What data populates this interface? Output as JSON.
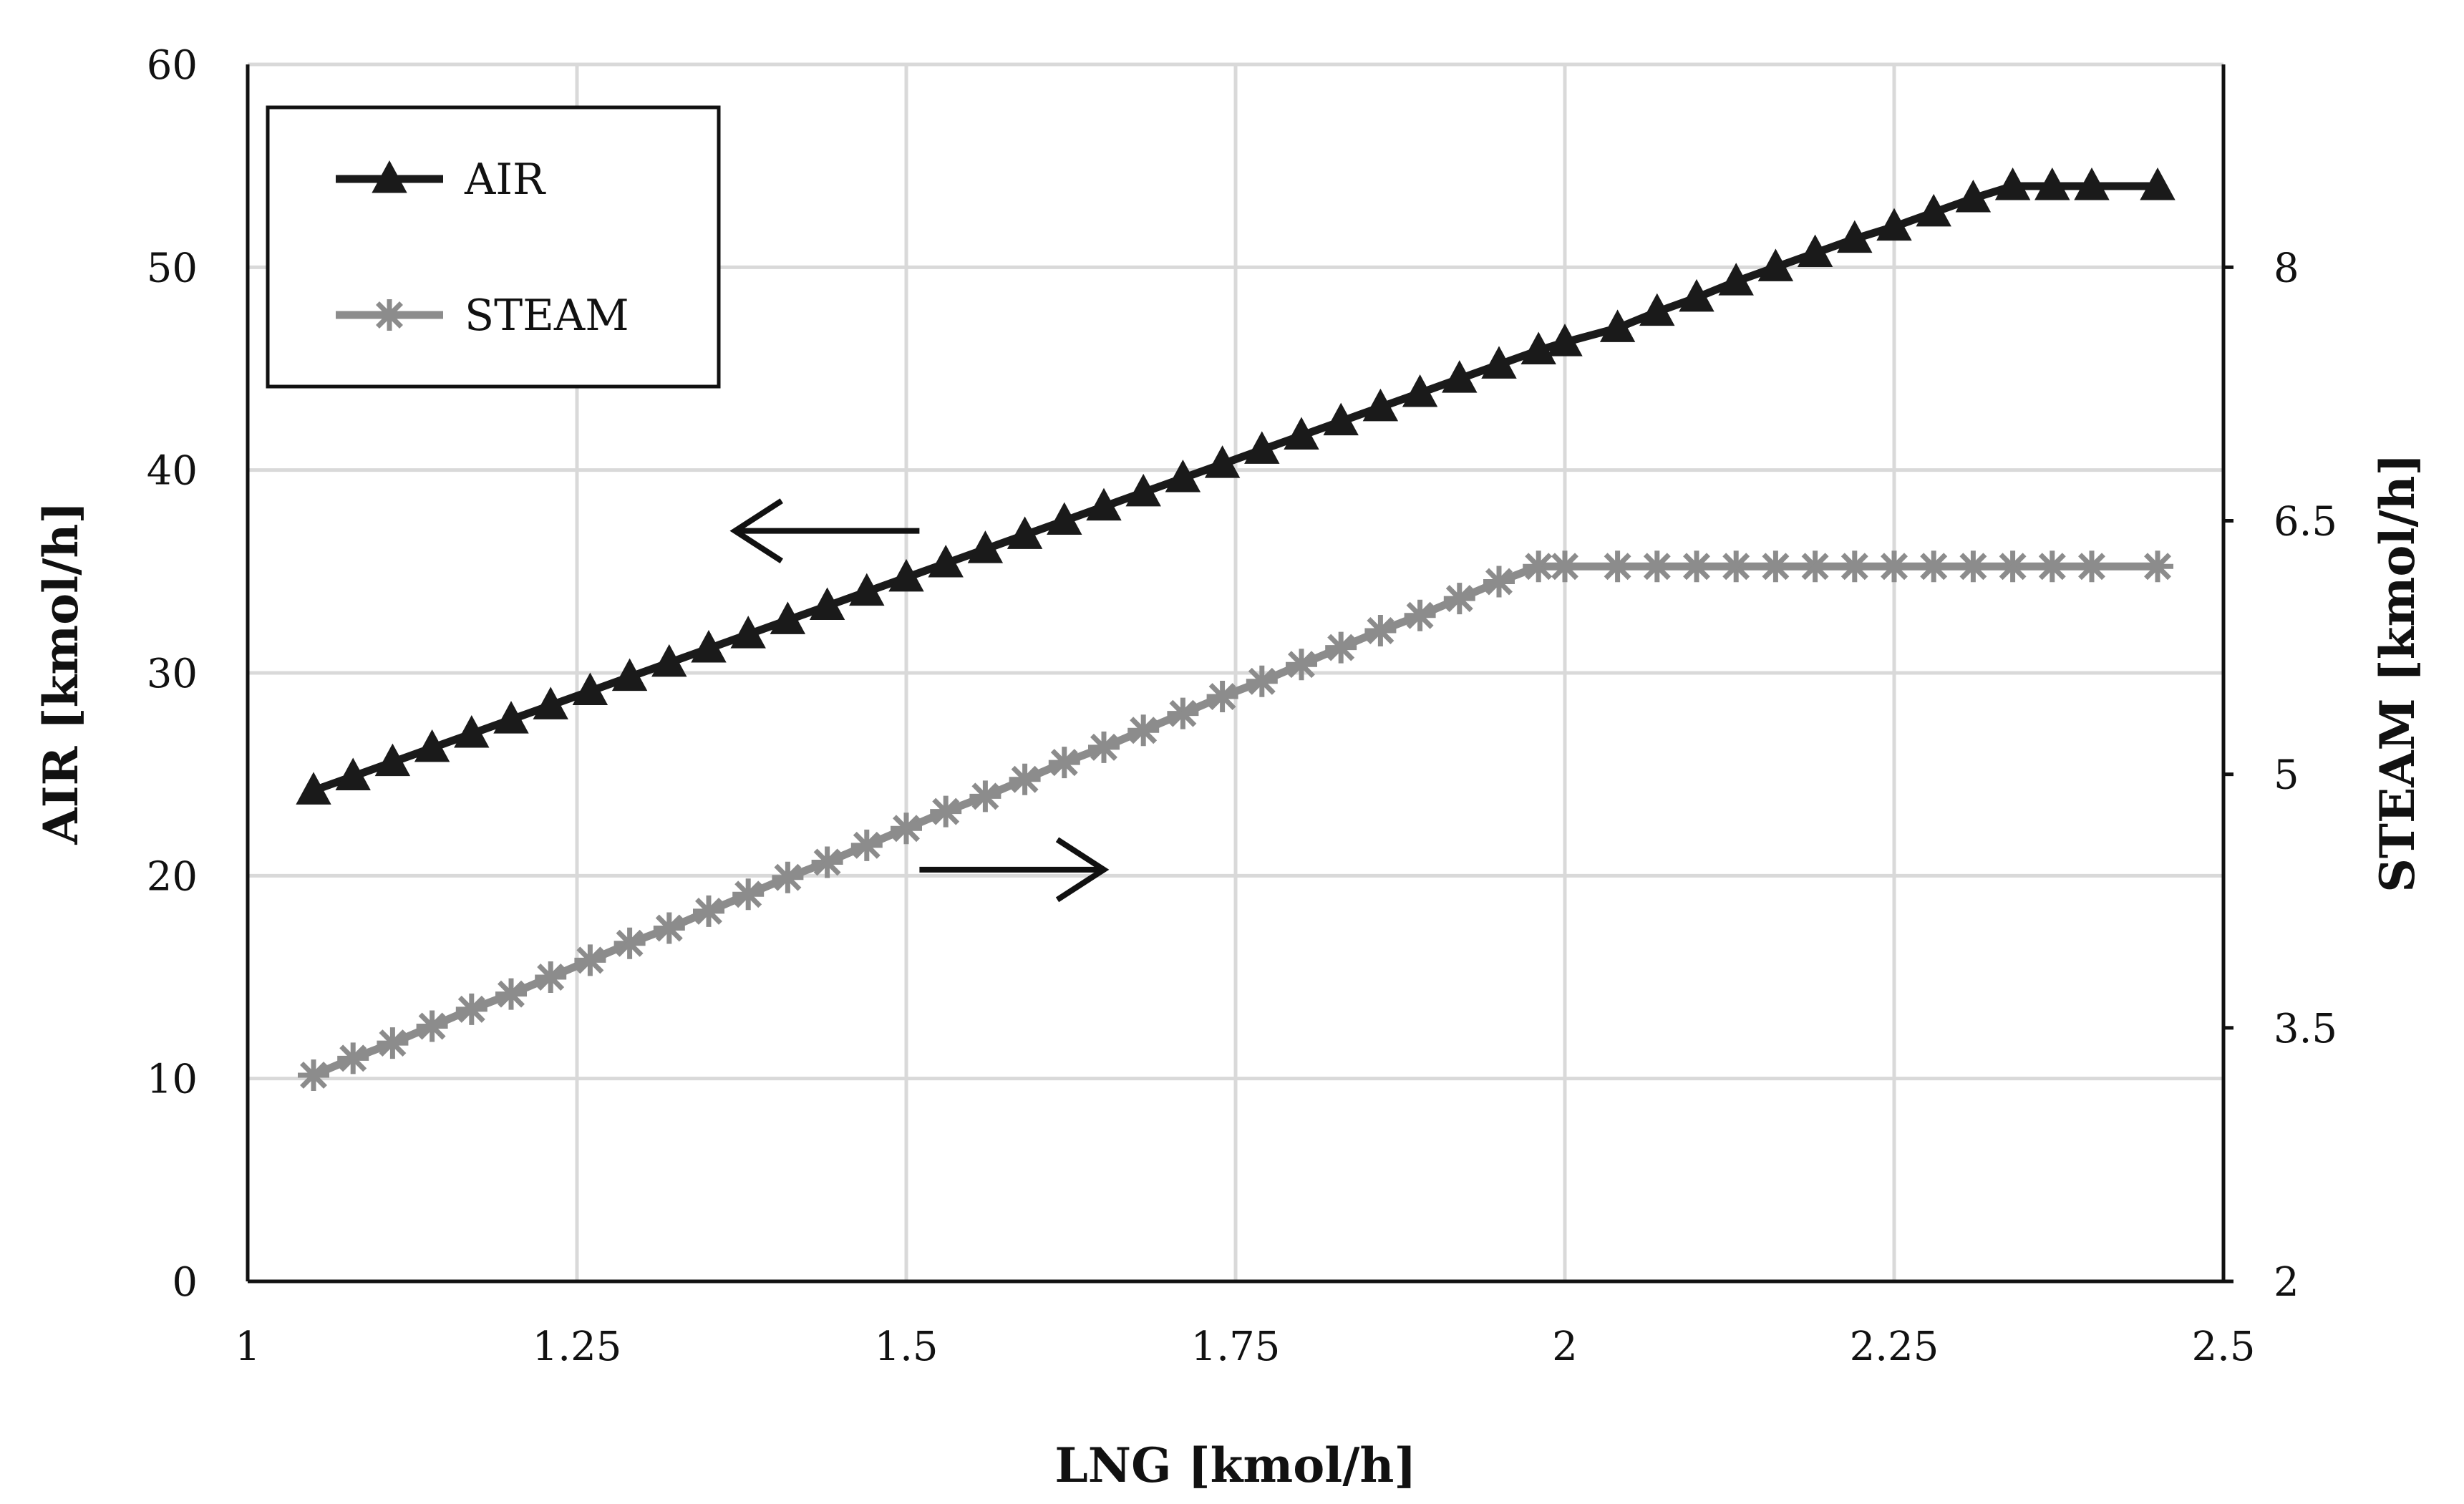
{
  "chart_data": {
    "type": "line",
    "title": "",
    "xlabel": "LNG [kmol/h]",
    "ylabel_left": "AIR [kmol/h]",
    "ylabel_right": "STEAM [kmol/h]",
    "xlim": [
      1,
      2.5
    ],
    "ylim_left": [
      0,
      60
    ],
    "ylim_right": [
      2,
      9.2
    ],
    "x_ticks": [
      "1",
      "1.25",
      "1.5",
      "1.75",
      "2",
      "2.25",
      "2.5"
    ],
    "y_left_ticks": [
      "0",
      "10",
      "20",
      "30",
      "40",
      "50",
      "60"
    ],
    "y_right_ticks": [
      "2",
      "3.5",
      "5",
      "6.5",
      "8"
    ],
    "grid": true,
    "legend_position": "top-left",
    "series": [
      {
        "name": "AIR",
        "axis": "left",
        "color": "#1a1a1a",
        "marker": "triangle",
        "x": [
          1.05,
          1.08,
          1.11,
          1.14,
          1.17,
          1.2,
          1.23,
          1.26,
          1.29,
          1.32,
          1.35,
          1.38,
          1.41,
          1.44,
          1.47,
          1.5,
          1.53,
          1.56,
          1.59,
          1.62,
          1.65,
          1.68,
          1.71,
          1.74,
          1.77,
          1.8,
          1.83,
          1.86,
          1.89,
          1.92,
          1.95,
          1.98,
          2.0,
          2.04,
          2.07,
          2.1,
          2.13,
          2.16,
          2.19,
          2.22,
          2.25,
          2.28,
          2.31,
          2.34,
          2.37,
          2.4,
          2.45
        ],
        "y": [
          24.2,
          24.9,
          25.6,
          26.3,
          27.0,
          27.7,
          28.4,
          29.1,
          29.8,
          30.5,
          31.2,
          31.9,
          32.6,
          33.3,
          34.0,
          34.7,
          35.4,
          36.1,
          36.8,
          37.5,
          38.2,
          38.9,
          39.6,
          40.3,
          41.0,
          41.7,
          42.4,
          43.1,
          43.8,
          44.5,
          45.2,
          45.9,
          46.3,
          47.0,
          47.8,
          48.5,
          49.3,
          50.0,
          50.7,
          51.4,
          52.0,
          52.7,
          53.4,
          54.0,
          54.0,
          54.0,
          54.0
        ]
      },
      {
        "name": "STEAM",
        "axis": "right",
        "color": "#8c8c8c",
        "marker": "asterisk",
        "x": [
          1.05,
          1.08,
          1.11,
          1.14,
          1.17,
          1.2,
          1.23,
          1.26,
          1.29,
          1.32,
          1.35,
          1.38,
          1.41,
          1.44,
          1.47,
          1.5,
          1.53,
          1.56,
          1.59,
          1.62,
          1.65,
          1.68,
          1.71,
          1.74,
          1.77,
          1.8,
          1.83,
          1.86,
          1.89,
          1.92,
          1.95,
          1.98,
          2.0,
          2.04,
          2.07,
          2.1,
          2.13,
          2.16,
          2.19,
          2.22,
          2.25,
          2.28,
          2.31,
          2.34,
          2.37,
          2.4,
          2.45
        ],
        "y": [
          3.22,
          3.32,
          3.41,
          3.51,
          3.61,
          3.7,
          3.8,
          3.9,
          4.0,
          4.09,
          4.19,
          4.29,
          4.39,
          4.48,
          4.58,
          4.68,
          4.78,
          4.87,
          4.97,
          5.07,
          5.16,
          5.26,
          5.36,
          5.46,
          5.55,
          5.65,
          5.75,
          5.85,
          5.94,
          6.04,
          6.14,
          6.23,
          6.23,
          6.23,
          6.23,
          6.23,
          6.23,
          6.23,
          6.23,
          6.23,
          6.23,
          6.23,
          6.23,
          6.23,
          6.23,
          6.23,
          6.23
        ]
      }
    ],
    "annotations": [
      {
        "type": "arrow",
        "direction": "left",
        "refers_to": "AIR",
        "x_from": 1.51,
        "x_to": 1.37,
        "y_left": 37
      },
      {
        "type": "arrow",
        "direction": "right",
        "refers_to": "STEAM",
        "x_from": 1.51,
        "x_to": 1.65,
        "y_left": 20.3
      }
    ]
  }
}
